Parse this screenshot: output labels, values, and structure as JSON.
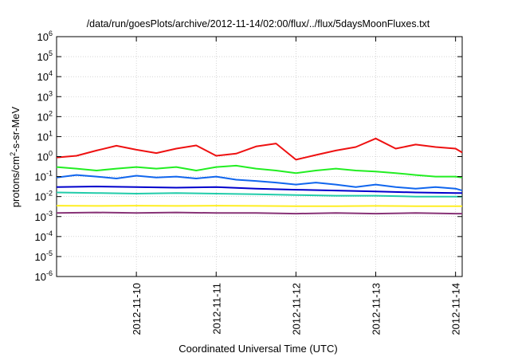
{
  "chart_data": {
    "type": "line",
    "title": "/data/run/goesPlots/archive/2012-11-14/02:00/flux/../flux/5daysMoonFluxes.txt",
    "xlabel": "Coordinated Universal Time (UTC)",
    "ylabel_prefix": "protons/cm",
    "ylabel_exp": "2",
    "ylabel_suffix": "-s-sr-MeV",
    "y_scale": "log",
    "ylim": [
      1e-06,
      1000000.0
    ],
    "x_unit": "days (UTC)",
    "xlim": [
      "2012-11-09 00:00",
      "2012-11-14 02:00"
    ],
    "x_ticks": [
      "2012-11-10",
      "2012-11-11",
      "2012-11-12",
      "2012-11-13",
      "2012-11-14"
    ],
    "y_ticks": [
      {
        "base": "10",
        "exp": "-6"
      },
      {
        "base": "10",
        "exp": "-5"
      },
      {
        "base": "10",
        "exp": "-4"
      },
      {
        "base": "10",
        "exp": "-3"
      },
      {
        "base": "10",
        "exp": "-2"
      },
      {
        "base": "10",
        "exp": "-1"
      },
      {
        "base": "10",
        "exp": "0"
      },
      {
        "base": "10",
        "exp": "1"
      },
      {
        "base": "10",
        "exp": "2"
      },
      {
        "base": "10",
        "exp": "3"
      },
      {
        "base": "10",
        "exp": "4"
      },
      {
        "base": "10",
        "exp": "5"
      },
      {
        "base": "10",
        "exp": "6"
      }
    ],
    "grid": true,
    "legend": "none",
    "series": [
      {
        "color": "#ee1111",
        "x": [
          "2012-11-09 00:00",
          "2012-11-09 06:00",
          "2012-11-09 12:00",
          "2012-11-09 18:00",
          "2012-11-10 00:00",
          "2012-11-10 06:00",
          "2012-11-10 12:00",
          "2012-11-10 18:00",
          "2012-11-11 00:00",
          "2012-11-11 06:00",
          "2012-11-11 12:00",
          "2012-11-11 18:00",
          "2012-11-12 00:00",
          "2012-11-12 06:00",
          "2012-11-12 12:00",
          "2012-11-12 18:00",
          "2012-11-13 00:00",
          "2012-11-13 06:00",
          "2012-11-13 12:00",
          "2012-11-13 18:00",
          "2012-11-14 00:00",
          "2012-11-14 02:00"
        ],
        "y": [
          0.9,
          1.1,
          2.0,
          3.5,
          2.2,
          1.5,
          2.5,
          3.6,
          1.1,
          1.4,
          3.2,
          4.5,
          0.7,
          1.2,
          2.0,
          3.0,
          8.0,
          2.5,
          4.0,
          3.0,
          2.5,
          1.6
        ]
      },
      {
        "color": "#22ee22",
        "x": [
          "2012-11-09 00:00",
          "2012-11-09 06:00",
          "2012-11-09 12:00",
          "2012-11-09 18:00",
          "2012-11-10 00:00",
          "2012-11-10 06:00",
          "2012-11-10 12:00",
          "2012-11-10 18:00",
          "2012-11-11 00:00",
          "2012-11-11 06:00",
          "2012-11-11 12:00",
          "2012-11-11 18:00",
          "2012-11-12 00:00",
          "2012-11-12 06:00",
          "2012-11-12 12:00",
          "2012-11-12 18:00",
          "2012-11-13 00:00",
          "2012-11-13 06:00",
          "2012-11-13 12:00",
          "2012-11-13 18:00",
          "2012-11-14 00:00",
          "2012-11-14 02:00"
        ],
        "y": [
          0.3,
          0.25,
          0.2,
          0.25,
          0.3,
          0.25,
          0.3,
          0.2,
          0.3,
          0.35,
          0.25,
          0.2,
          0.15,
          0.2,
          0.25,
          0.2,
          0.18,
          0.15,
          0.12,
          0.1,
          0.1,
          0.09
        ]
      },
      {
        "color": "#1166ee",
        "x": [
          "2012-11-09 00:00",
          "2012-11-09 06:00",
          "2012-11-09 12:00",
          "2012-11-09 18:00",
          "2012-11-10 00:00",
          "2012-11-10 06:00",
          "2012-11-10 12:00",
          "2012-11-10 18:00",
          "2012-11-11 00:00",
          "2012-11-11 06:00",
          "2012-11-11 12:00",
          "2012-11-11 18:00",
          "2012-11-12 00:00",
          "2012-11-12 06:00",
          "2012-11-12 12:00",
          "2012-11-12 18:00",
          "2012-11-13 00:00",
          "2012-11-13 06:00",
          "2012-11-13 12:00",
          "2012-11-13 18:00",
          "2012-11-14 00:00",
          "2012-11-14 02:00"
        ],
        "y": [
          0.09,
          0.12,
          0.1,
          0.08,
          0.11,
          0.09,
          0.1,
          0.08,
          0.1,
          0.07,
          0.06,
          0.05,
          0.04,
          0.05,
          0.04,
          0.03,
          0.04,
          0.03,
          0.025,
          0.03,
          0.025,
          0.02
        ]
      },
      {
        "color": "#0000cc",
        "x": [
          "2012-11-09 00:00",
          "2012-11-09 12:00",
          "2012-11-10 00:00",
          "2012-11-10 12:00",
          "2012-11-11 00:00",
          "2012-11-11 12:00",
          "2012-11-12 00:00",
          "2012-11-12 12:00",
          "2012-11-13 00:00",
          "2012-11-13 12:00",
          "2012-11-14 00:00",
          "2012-11-14 02:00"
        ],
        "y": [
          0.03,
          0.032,
          0.03,
          0.028,
          0.03,
          0.025,
          0.022,
          0.02,
          0.018,
          0.016,
          0.015,
          0.015
        ]
      },
      {
        "color": "#22ccaa",
        "x": [
          "2012-11-09 00:00",
          "2012-11-09 12:00",
          "2012-11-10 00:00",
          "2012-11-10 12:00",
          "2012-11-11 00:00",
          "2012-11-11 12:00",
          "2012-11-12 00:00",
          "2012-11-12 12:00",
          "2012-11-13 00:00",
          "2012-11-13 12:00",
          "2012-11-14 00:00",
          "2012-11-14 02:00"
        ],
        "y": [
          0.016,
          0.015,
          0.014,
          0.015,
          0.014,
          0.013,
          0.012,
          0.011,
          0.011,
          0.01,
          0.01,
          0.01
        ]
      },
      {
        "color": "#ffee22",
        "x": [
          "2012-11-09 00:00",
          "2012-11-09 12:00",
          "2012-11-10 00:00",
          "2012-11-10 12:00",
          "2012-11-11 00:00",
          "2012-11-11 12:00",
          "2012-11-12 00:00",
          "2012-11-12 12:00",
          "2012-11-13 00:00",
          "2012-11-13 12:00",
          "2012-11-14 00:00",
          "2012-11-14 02:00"
        ],
        "y": [
          0.0035,
          0.0034,
          0.0035,
          0.0034,
          0.0035,
          0.0034,
          0.0033,
          0.0033,
          0.0034,
          0.0033,
          0.0033,
          0.0033
        ]
      },
      {
        "color": "#883377",
        "x": [
          "2012-11-09 00:00",
          "2012-11-09 12:00",
          "2012-11-10 00:00",
          "2012-11-10 12:00",
          "2012-11-11 00:00",
          "2012-11-11 12:00",
          "2012-11-12 00:00",
          "2012-11-12 12:00",
          "2012-11-13 00:00",
          "2012-11-13 12:00",
          "2012-11-14 00:00",
          "2012-11-14 02:00"
        ],
        "y": [
          0.0015,
          0.0016,
          0.0015,
          0.0016,
          0.0015,
          0.0015,
          0.0014,
          0.0015,
          0.0014,
          0.0015,
          0.0014,
          0.0014
        ]
      }
    ]
  }
}
